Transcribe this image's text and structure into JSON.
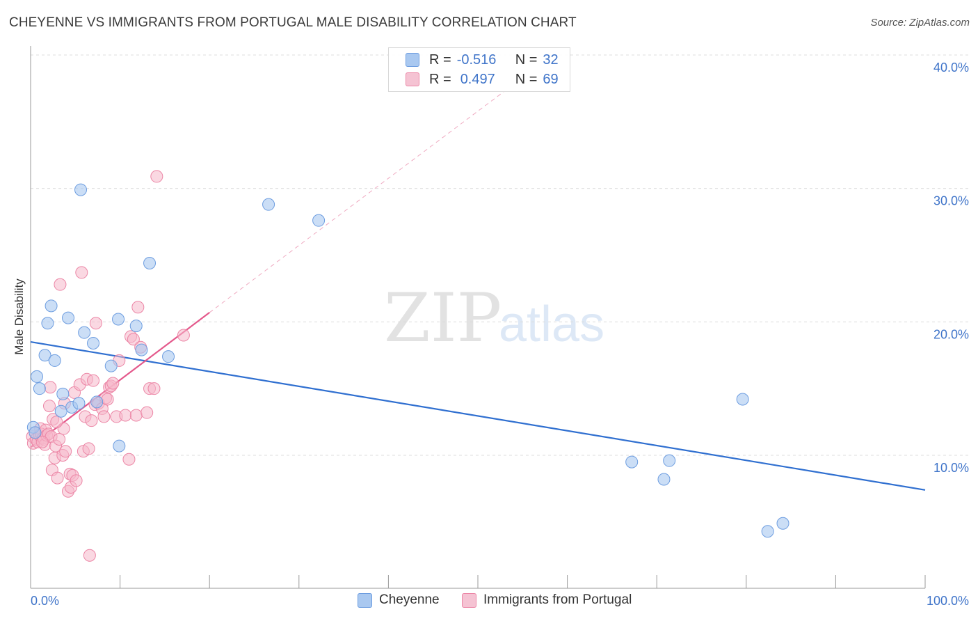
{
  "title": "CHEYENNE VS IMMIGRANTS FROM PORTUGAL MALE DISABILITY CORRELATION CHART",
  "source": "Source: ZipAtlas.com",
  "watermark": {
    "zip": "ZIP",
    "atlas": "atlas"
  },
  "legend": {
    "rows": [
      {
        "r_label": "R =",
        "r_value": "-0.516",
        "n_label": "N =",
        "n_value": "32"
      },
      {
        "r_label": "R =",
        "r_value": "0.497",
        "n_label": "N =",
        "n_value": "69"
      }
    ]
  },
  "bottom_legend": [
    "Cheyenne",
    "Immigrants from Portugal"
  ],
  "colors": {
    "blue_fill": "#a9c8f0",
    "blue_stroke": "#6d9de0",
    "blue_line": "#2f6fd0",
    "pink_fill": "#f5b8cb",
    "pink_stroke": "#ec86a6",
    "pink_line": "#e4588b",
    "tick_text": "#3f74c9",
    "grid": "#dcdcdc"
  },
  "chart_data": {
    "type": "scatter",
    "title": "CHEYENNE VS IMMIGRANTS FROM PORTUGAL MALE DISABILITY CORRELATION CHART",
    "xlabel": "",
    "ylabel": "Male Disability",
    "xlim": [
      0,
      100
    ],
    "ylim": [
      0,
      42
    ],
    "x_tick_labels": [
      "0.0%",
      "100.0%"
    ],
    "y_ticks": [
      10,
      20,
      30,
      40
    ],
    "y_tick_labels": [
      "10.0%",
      "20.0%",
      "30.0%",
      "40.0%"
    ],
    "grid": true,
    "series": [
      {
        "name": "Cheyenne",
        "color": "blue",
        "R": -0.516,
        "N": 32,
        "trendline": {
          "x": [
            0,
            100
          ],
          "y": [
            18.5,
            7.4
          ]
        },
        "points": [
          [
            0.3,
            12.1
          ],
          [
            0.5,
            11.7
          ],
          [
            0.7,
            15.9
          ],
          [
            1.0,
            15.0
          ],
          [
            1.6,
            17.5
          ],
          [
            1.9,
            19.9
          ],
          [
            2.3,
            21.2
          ],
          [
            2.7,
            17.1
          ],
          [
            3.4,
            13.3
          ],
          [
            3.6,
            14.6
          ],
          [
            4.2,
            20.3
          ],
          [
            4.6,
            13.6
          ],
          [
            5.4,
            13.9
          ],
          [
            5.6,
            29.9
          ],
          [
            6.0,
            19.2
          ],
          [
            7.0,
            18.4
          ],
          [
            7.4,
            14.0
          ],
          [
            9.0,
            16.7
          ],
          [
            9.8,
            20.2
          ],
          [
            9.9,
            10.7
          ],
          [
            11.8,
            19.7
          ],
          [
            12.4,
            17.9
          ],
          [
            13.3,
            24.4
          ],
          [
            15.4,
            17.4
          ],
          [
            26.6,
            28.8
          ],
          [
            32.2,
            27.6
          ],
          [
            67.2,
            9.5
          ],
          [
            70.8,
            8.2
          ],
          [
            71.4,
            9.6
          ],
          [
            79.6,
            14.2
          ],
          [
            82.4,
            4.3
          ],
          [
            84.1,
            4.9
          ]
        ]
      },
      {
        "name": "Immigrants from Portugal",
        "color": "pink",
        "R": 0.497,
        "N": 69,
        "trendline": {
          "x": [
            0,
            20
          ],
          "y": [
            10.6,
            20.7
          ]
        },
        "trendline_extension": {
          "x": [
            20,
            53
          ],
          "y": [
            20.7,
            37.3
          ]
        },
        "points": [
          [
            0.2,
            11.4
          ],
          [
            0.3,
            10.9
          ],
          [
            0.5,
            11.7
          ],
          [
            0.6,
            11.2
          ],
          [
            0.8,
            11.0
          ],
          [
            1.0,
            11.5
          ],
          [
            1.1,
            12.0
          ],
          [
            1.2,
            11.6
          ],
          [
            1.4,
            11.3
          ],
          [
            1.5,
            11.2
          ],
          [
            1.6,
            10.8
          ],
          [
            1.7,
            11.9
          ],
          [
            1.8,
            11.5
          ],
          [
            2.0,
            11.6
          ],
          [
            2.1,
            13.7
          ],
          [
            2.2,
            15.1
          ],
          [
            2.3,
            11.4
          ],
          [
            2.4,
            8.9
          ],
          [
            2.5,
            12.7
          ],
          [
            2.7,
            9.8
          ],
          [
            2.8,
            10.7
          ],
          [
            3.0,
            8.3
          ],
          [
            3.2,
            11.2
          ],
          [
            3.3,
            22.8
          ],
          [
            3.6,
            10.0
          ],
          [
            3.7,
            12.0
          ],
          [
            3.8,
            13.9
          ],
          [
            3.9,
            10.3
          ],
          [
            4.2,
            7.3
          ],
          [
            4.4,
            8.6
          ],
          [
            4.5,
            7.6
          ],
          [
            4.7,
            8.5
          ],
          [
            4.9,
            14.7
          ],
          [
            5.1,
            8.1
          ],
          [
            5.5,
            15.3
          ],
          [
            5.7,
            23.7
          ],
          [
            5.9,
            10.3
          ],
          [
            6.1,
            12.9
          ],
          [
            6.3,
            15.7
          ],
          [
            6.5,
            10.5
          ],
          [
            6.6,
            2.5
          ],
          [
            7.0,
            15.6
          ],
          [
            7.2,
            13.8
          ],
          [
            7.3,
            19.9
          ],
          [
            7.6,
            13.9
          ],
          [
            8.0,
            13.5
          ],
          [
            8.2,
            12.9
          ],
          [
            8.4,
            14.3
          ],
          [
            8.6,
            14.2
          ],
          [
            8.8,
            15.1
          ],
          [
            9.0,
            15.2
          ],
          [
            9.2,
            15.4
          ],
          [
            9.6,
            12.9
          ],
          [
            9.9,
            17.1
          ],
          [
            10.6,
            13.0
          ],
          [
            11.0,
            9.7
          ],
          [
            11.2,
            18.9
          ],
          [
            11.5,
            18.7
          ],
          [
            11.8,
            13.0
          ],
          [
            12.0,
            21.1
          ],
          [
            12.3,
            18.1
          ],
          [
            13.0,
            13.2
          ],
          [
            13.3,
            15.0
          ],
          [
            13.8,
            15.0
          ],
          [
            14.1,
            30.9
          ],
          [
            17.1,
            19.0
          ],
          [
            1.3,
            11.0
          ],
          [
            2.9,
            12.5
          ],
          [
            6.8,
            12.6
          ]
        ]
      }
    ]
  }
}
